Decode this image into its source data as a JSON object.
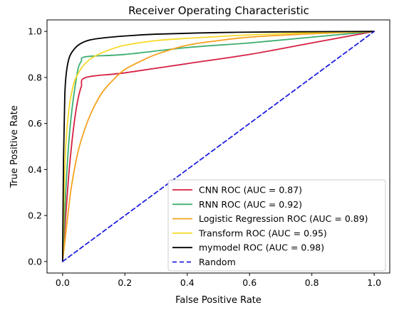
{
  "chart_data": {
    "type": "line",
    "title": "Receiver Operating Characteristic",
    "xlabel": "False Positive Rate",
    "ylabel": "True Positive Rate",
    "xlim": [
      -0.05,
      1.05
    ],
    "ylim": [
      -0.05,
      1.05
    ],
    "xticks": [
      "0.0",
      "0.2",
      "0.4",
      "0.6",
      "0.8",
      "1.0"
    ],
    "yticks": [
      "0.0",
      "0.2",
      "0.4",
      "0.6",
      "0.8",
      "1.0"
    ],
    "grid": false,
    "legend_position": "lower right",
    "series": [
      {
        "name": "CNN ROC (AUC = 0.87)",
        "color": "#d62043",
        "dash": "solid",
        "points": [
          [
            0,
            0
          ],
          [
            0.01,
            0.2
          ],
          [
            0.02,
            0.38
          ],
          [
            0.03,
            0.52
          ],
          [
            0.04,
            0.63
          ],
          [
            0.05,
            0.71
          ],
          [
            0.06,
            0.76
          ],
          [
            0.075,
            0.8
          ],
          [
            0.2,
            0.82
          ],
          [
            0.4,
            0.86
          ],
          [
            0.6,
            0.9
          ],
          [
            0.8,
            0.95
          ],
          [
            1.0,
            1.0
          ]
        ]
      },
      {
        "name": "RNN ROC (AUC = 0.92)",
        "color": "#3dae70",
        "dash": "solid",
        "points": [
          [
            0,
            0
          ],
          [
            0.01,
            0.3
          ],
          [
            0.02,
            0.52
          ],
          [
            0.03,
            0.66
          ],
          [
            0.04,
            0.76
          ],
          [
            0.05,
            0.84
          ],
          [
            0.06,
            0.87
          ],
          [
            0.075,
            0.89
          ],
          [
            0.2,
            0.9
          ],
          [
            0.4,
            0.93
          ],
          [
            0.6,
            0.95
          ],
          [
            0.8,
            0.975
          ],
          [
            1.0,
            1.0
          ]
        ]
      },
      {
        "name": "Logistic Regression ROC (AUC = 0.89)",
        "color": "#f5a11c",
        "dash": "solid",
        "points": [
          [
            0,
            0
          ],
          [
            0.01,
            0.12
          ],
          [
            0.02,
            0.24
          ],
          [
            0.03,
            0.34
          ],
          [
            0.05,
            0.48
          ],
          [
            0.075,
            0.59
          ],
          [
            0.1,
            0.67
          ],
          [
            0.13,
            0.74
          ],
          [
            0.17,
            0.8
          ],
          [
            0.2,
            0.835
          ],
          [
            0.25,
            0.87
          ],
          [
            0.3,
            0.9
          ],
          [
            0.4,
            0.94
          ],
          [
            0.5,
            0.96
          ],
          [
            0.6,
            0.975
          ],
          [
            0.8,
            0.99
          ],
          [
            1.0,
            1.0
          ]
        ]
      },
      {
        "name": "Transform ROC (AUC = 0.95)",
        "color": "#f6d928",
        "dash": "solid",
        "points": [
          [
            0,
            0
          ],
          [
            0.005,
            0.3
          ],
          [
            0.01,
            0.5
          ],
          [
            0.02,
            0.66
          ],
          [
            0.03,
            0.74
          ],
          [
            0.04,
            0.79
          ],
          [
            0.06,
            0.84
          ],
          [
            0.08,
            0.87
          ],
          [
            0.1,
            0.89
          ],
          [
            0.15,
            0.92
          ],
          [
            0.2,
            0.94
          ],
          [
            0.3,
            0.96
          ],
          [
            0.4,
            0.97
          ],
          [
            0.6,
            0.985
          ],
          [
            0.8,
            0.995
          ],
          [
            1.0,
            1.0
          ]
        ]
      },
      {
        "name": "mymodel ROC (AUC = 0.98)",
        "color": "#000000",
        "dash": "solid",
        "points": [
          [
            0,
            0
          ],
          [
            0.003,
            0.45
          ],
          [
            0.007,
            0.72
          ],
          [
            0.012,
            0.82
          ],
          [
            0.02,
            0.88
          ],
          [
            0.03,
            0.91
          ],
          [
            0.05,
            0.94
          ],
          [
            0.08,
            0.96
          ],
          [
            0.12,
            0.97
          ],
          [
            0.2,
            0.98
          ],
          [
            0.3,
            0.988
          ],
          [
            0.5,
            0.995
          ],
          [
            0.7,
            0.998
          ],
          [
            1.0,
            1.0
          ]
        ]
      },
      {
        "name": "Random",
        "color": "#1f1fe0",
        "dash": "dashed",
        "points": [
          [
            0,
            0
          ],
          [
            1,
            1
          ]
        ]
      }
    ]
  }
}
